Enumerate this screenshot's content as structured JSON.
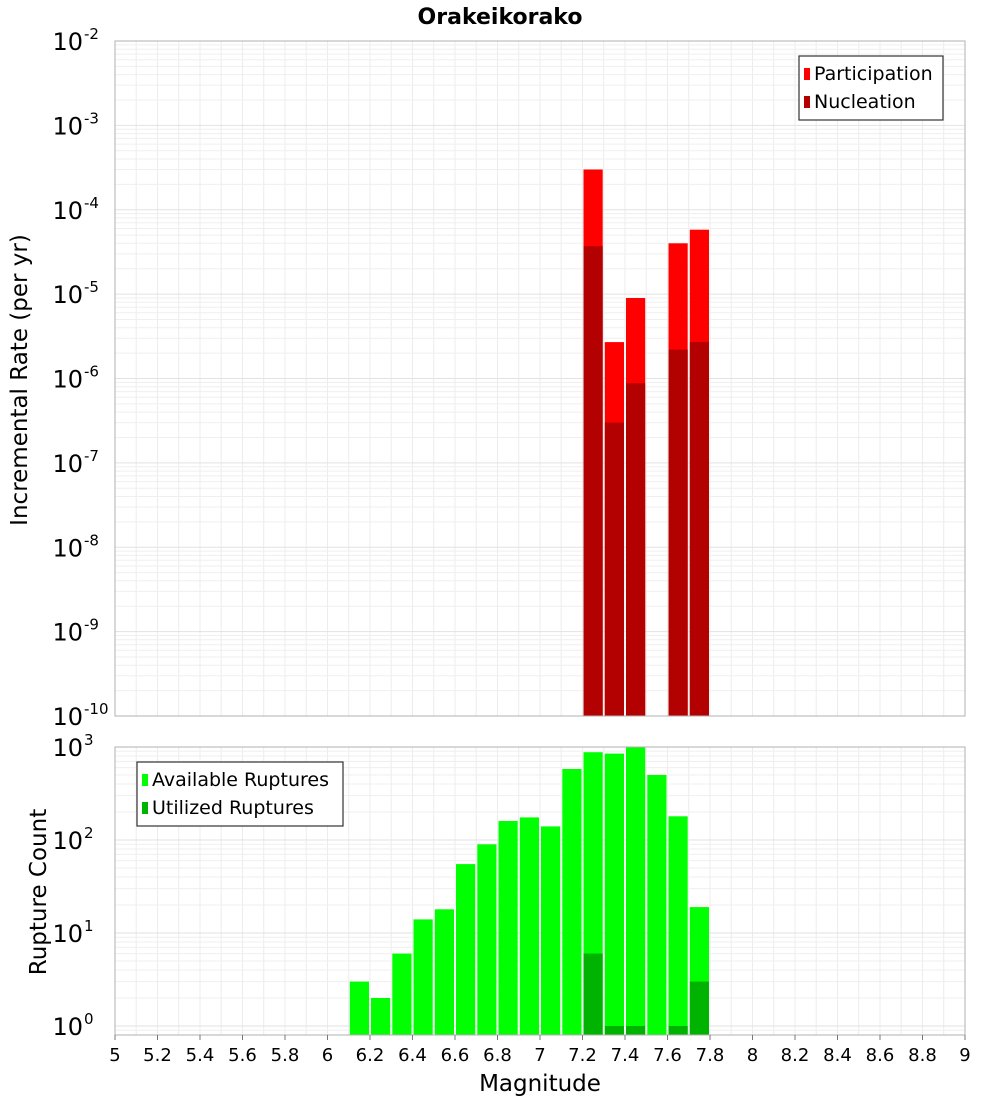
{
  "chart_data": [
    {
      "type": "bar",
      "title": "Orakeikorako",
      "xlabel": "",
      "ylabel": "Incremental Rate (per yr)",
      "yscale": "log",
      "ylim": [
        1e-10,
        0.01
      ],
      "xlim": [
        5,
        9
      ],
      "grid": true,
      "legend_position": "top-right",
      "y_ticks": [
        {
          "base": "10",
          "exp": "-10"
        },
        {
          "base": "10",
          "exp": "-9"
        },
        {
          "base": "10",
          "exp": "-8"
        },
        {
          "base": "10",
          "exp": "-7"
        },
        {
          "base": "10",
          "exp": "-6"
        },
        {
          "base": "10",
          "exp": "-5"
        },
        {
          "base": "10",
          "exp": "-4"
        },
        {
          "base": "10",
          "exp": "-3"
        },
        {
          "base": "10",
          "exp": "-2"
        }
      ],
      "x": [
        7.25,
        7.35,
        7.45,
        7.65,
        7.75
      ],
      "series": [
        {
          "name": "Participation",
          "color": "#ff0000",
          "values": [
            0.0003,
            2.7e-06,
            9e-06,
            4e-05,
            5.8e-05
          ]
        },
        {
          "name": "Nucleation",
          "color": "#b30000",
          "values": [
            3.7e-05,
            3e-07,
            8.8e-07,
            2.2e-06,
            2.7e-06
          ]
        }
      ]
    },
    {
      "type": "bar",
      "xlabel": "Magnitude",
      "ylabel": "Rupture Count",
      "yscale": "log",
      "ylim": [
        0.8,
        1000
      ],
      "xlim": [
        5,
        9
      ],
      "grid": true,
      "legend_position": "top-left",
      "y_ticks": [
        {
          "base": "10",
          "exp": "0"
        },
        {
          "base": "10",
          "exp": "1"
        },
        {
          "base": "10",
          "exp": "2"
        },
        {
          "base": "10",
          "exp": "3"
        }
      ],
      "x_ticks": [
        "5",
        "5.2",
        "5.4",
        "5.6",
        "5.8",
        "6",
        "6.2",
        "6.4",
        "6.6",
        "6.8",
        "7",
        "7.2",
        "7.4",
        "7.6",
        "7.8",
        "8",
        "8.2",
        "8.4",
        "8.6",
        "8.8",
        "9"
      ],
      "x": [
        6.15,
        6.25,
        6.35,
        6.45,
        6.55,
        6.65,
        6.75,
        6.85,
        6.95,
        7.05,
        7.15,
        7.25,
        7.35,
        7.45,
        7.55,
        7.65,
        7.75
      ],
      "series": [
        {
          "name": "Available Ruptures",
          "color": "#00ff00",
          "values": [
            3,
            2,
            6,
            14,
            18,
            55,
            90,
            160,
            175,
            140,
            580,
            880,
            850,
            1000,
            500,
            180,
            19
          ]
        },
        {
          "name": "Utilized Ruptures",
          "color": "#00b300",
          "values": [
            null,
            null,
            null,
            null,
            null,
            null,
            null,
            null,
            null,
            null,
            null,
            6,
            1,
            1,
            null,
            1,
            3
          ]
        }
      ]
    }
  ]
}
